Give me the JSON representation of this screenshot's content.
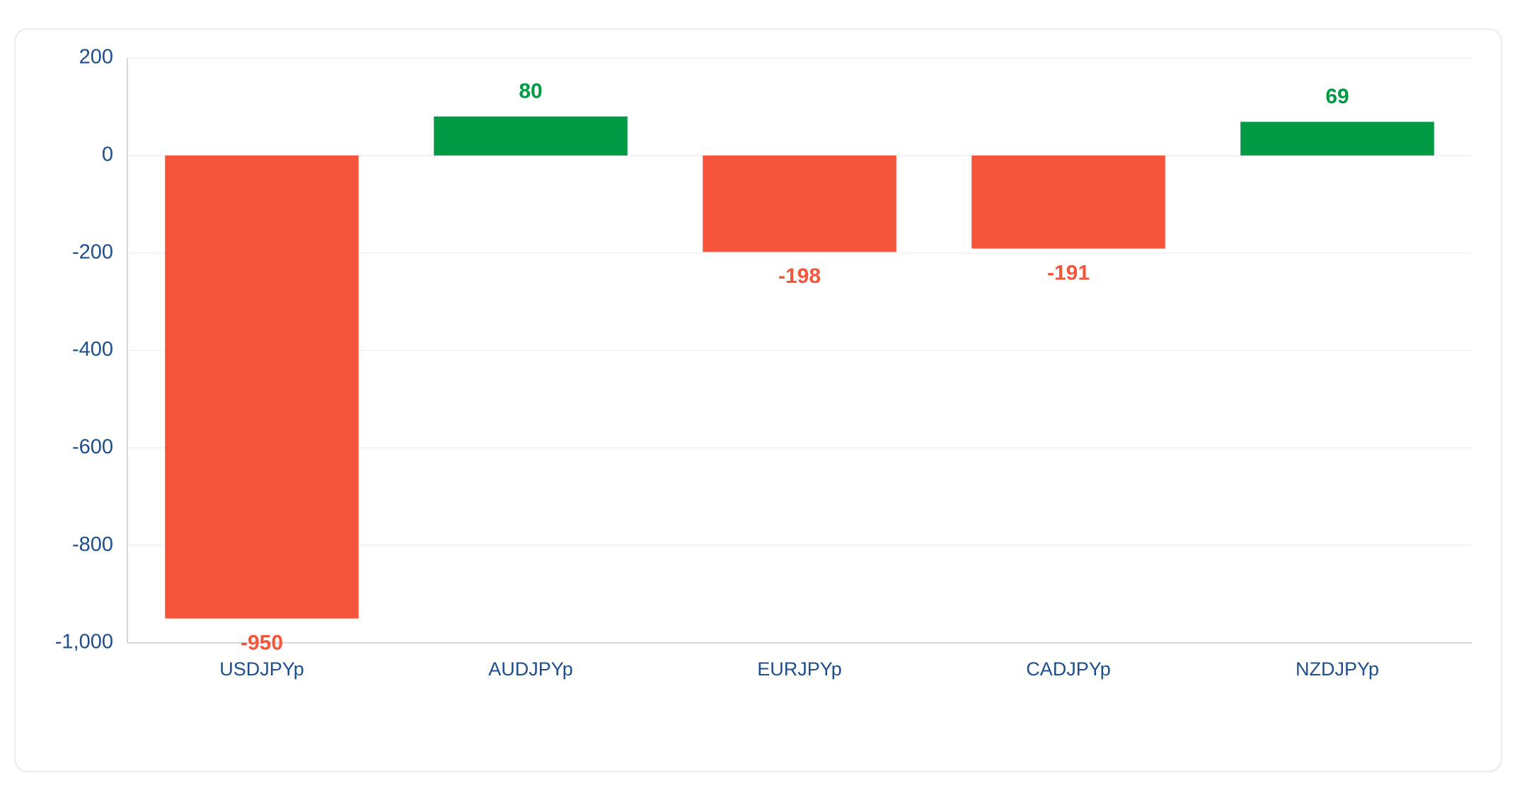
{
  "chart_data": {
    "type": "bar",
    "categories": [
      "USDJPYp",
      "AUDJPYp",
      "EURJPYp",
      "CADJPYp",
      "NZDJPYp"
    ],
    "values": [
      -950,
      80,
      -198,
      -191,
      69
    ],
    "colors": [
      "#f5553b",
      "#009a44",
      "#f5553b",
      "#f5553b",
      "#009a44"
    ],
    "ylim": [
      -1000,
      200
    ],
    "yticks": [
      200,
      0,
      -200,
      -400,
      -600,
      -800,
      {
        "value": -1000,
        "label": "-1,000"
      }
    ],
    "grid": true
  }
}
